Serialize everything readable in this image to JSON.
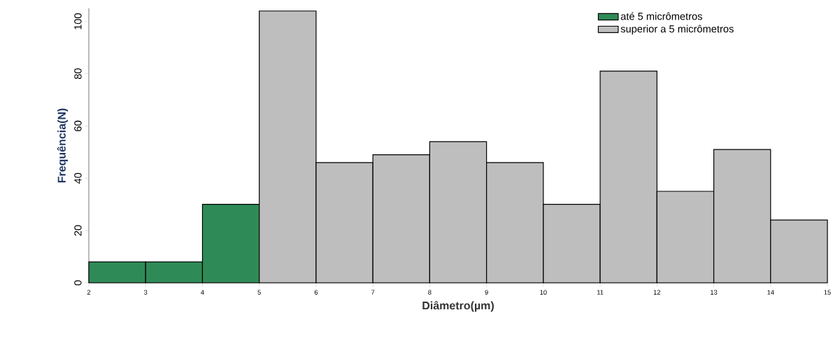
{
  "chart_data": {
    "type": "histogram",
    "xlabel": "Diâmetro(µm)",
    "ylabel": "Frequência(N)",
    "bins": [
      2,
      3,
      4,
      5,
      6,
      7,
      8,
      9,
      10,
      11,
      12,
      13,
      14,
      15
    ],
    "series": [
      {
        "name": "até 5 micrômetros",
        "color": "#2e8b57",
        "values": [
          8,
          8,
          30,
          null,
          null,
          null,
          null,
          null,
          null,
          null,
          null,
          null,
          null
        ]
      },
      {
        "name": "superior a 5 micrômetros",
        "color": "#bebebe",
        "values": [
          null,
          null,
          null,
          104,
          46,
          49,
          54,
          46,
          30,
          81,
          35,
          51,
          24
        ]
      }
    ],
    "xlim": [
      2,
      15
    ],
    "xticks": [
      2,
      3,
      4,
      5,
      6,
      7,
      8,
      9,
      10,
      11,
      12,
      13,
      14,
      15
    ],
    "ylim": [
      0,
      105
    ],
    "yticks": [
      0,
      20,
      40,
      60,
      80,
      100
    ],
    "legend": "top right"
  }
}
